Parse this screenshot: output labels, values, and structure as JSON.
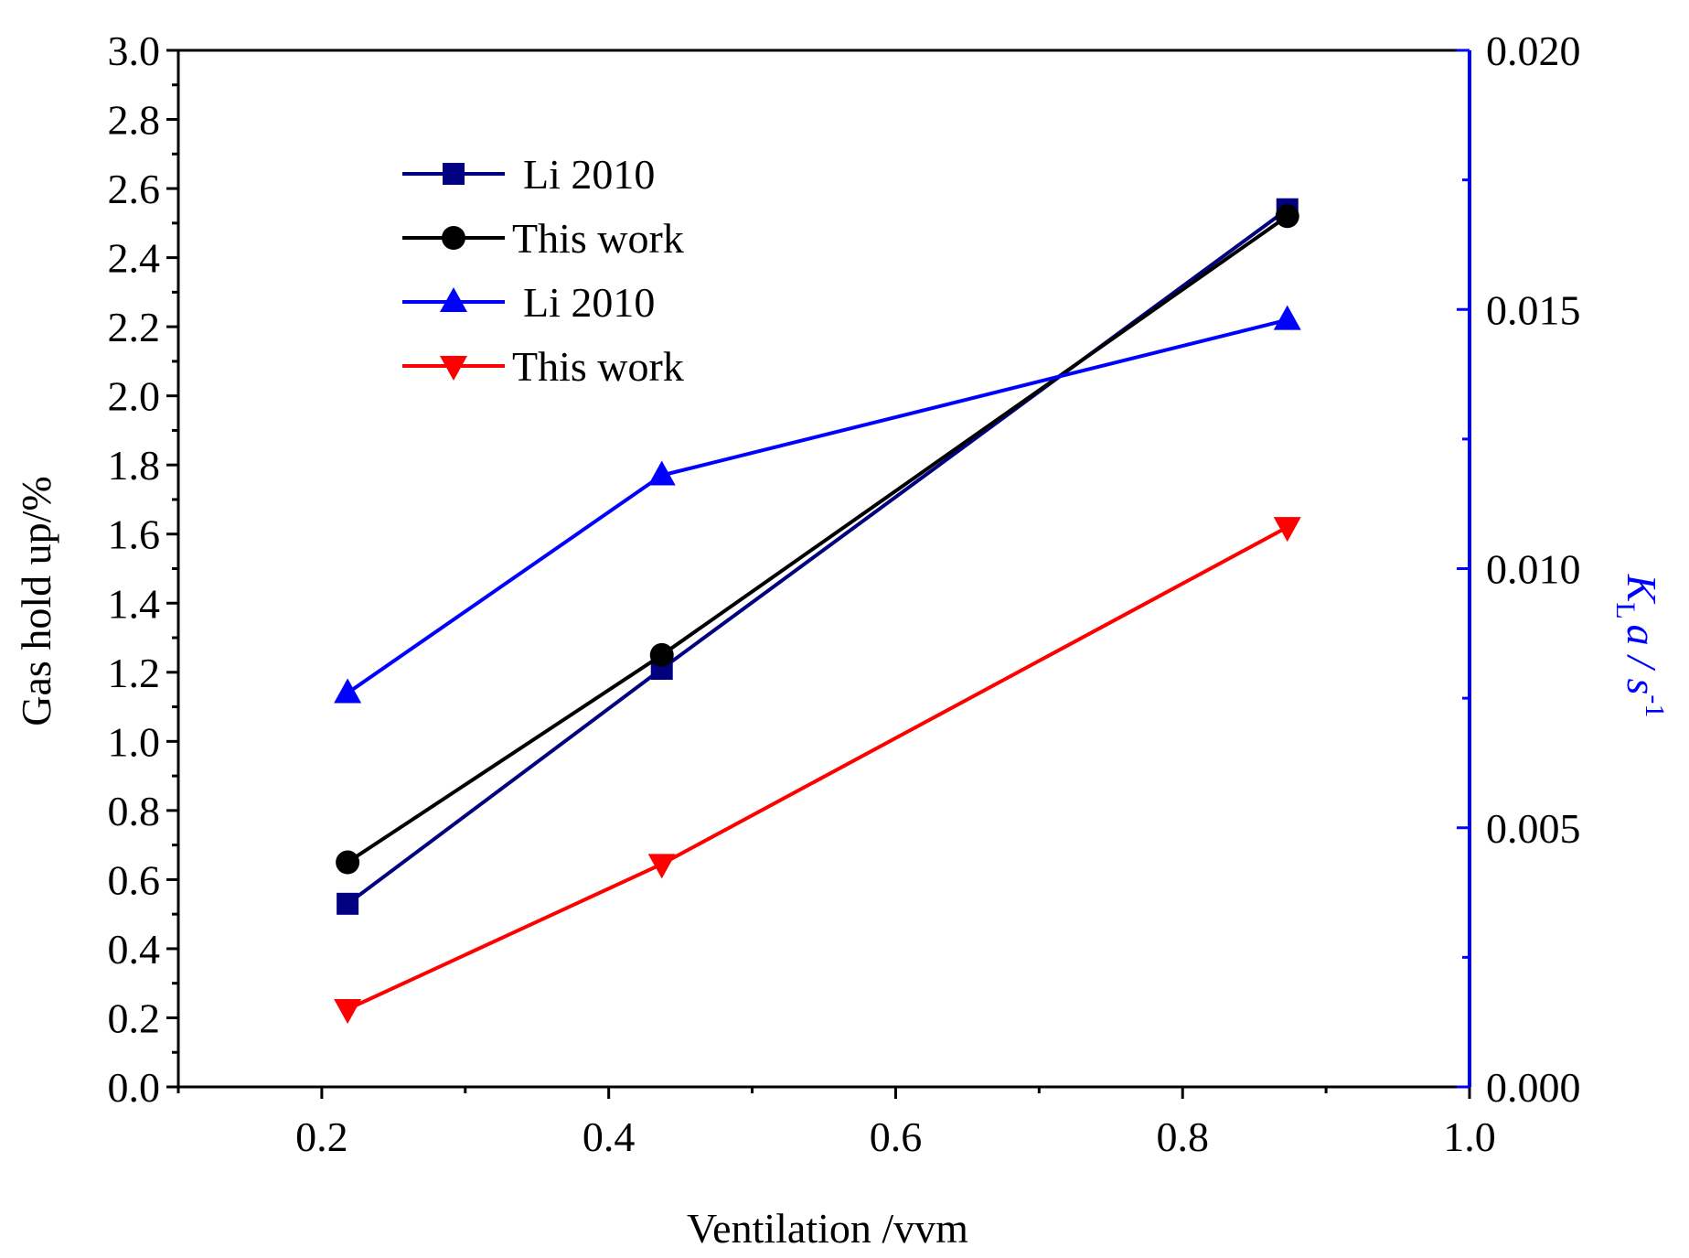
{
  "chart_data": {
    "type": "line",
    "xlabel": "Ventilation /vvm",
    "ylabel": "Gas hold up/%",
    "y2label": {
      "main": "K",
      "sub": "L",
      "rest": "a / s",
      "sup": "-1"
    },
    "xlim": [
      0.1,
      1.0
    ],
    "ylim": [
      0.0,
      3.0
    ],
    "y2lim": [
      0.0,
      0.02
    ],
    "xticks": [
      "0.2",
      "0.4",
      "0.6",
      "0.8",
      "1.0"
    ],
    "yticks": [
      "0.0",
      "0.2",
      "0.4",
      "0.6",
      "0.8",
      "1.0",
      "1.2",
      "1.4",
      "1.6",
      "1.8",
      "2.0",
      "2.2",
      "2.4",
      "2.6",
      "2.8",
      "3.0"
    ],
    "y2ticks": [
      "0.000",
      "0.005",
      "0.010",
      "0.015",
      "0.020"
    ],
    "grid": false,
    "legend_position": "top-left",
    "series": [
      {
        "name": "Li 2010",
        "axis": "left",
        "marker": "square",
        "color": "#000080",
        "x": [
          0.218,
          0.437,
          0.873
        ],
        "y": [
          0.53,
          1.21,
          2.54
        ]
      },
      {
        "name": "This work",
        "axis": "left",
        "marker": "circle",
        "color": "#000000",
        "x": [
          0.218,
          0.437,
          0.873
        ],
        "y": [
          0.65,
          1.25,
          2.52
        ]
      },
      {
        "name": "Li 2010",
        "axis": "right",
        "marker": "triangle-up",
        "color": "#0000ff",
        "x": [
          0.218,
          0.437,
          0.873
        ],
        "y": [
          0.0076,
          0.0118,
          0.0148
        ]
      },
      {
        "name": "This work",
        "axis": "right",
        "marker": "triangle-down",
        "color": "#ff0000",
        "x": [
          0.218,
          0.437,
          0.873
        ],
        "y": [
          0.0015,
          0.0043,
          0.0108
        ]
      }
    ]
  }
}
